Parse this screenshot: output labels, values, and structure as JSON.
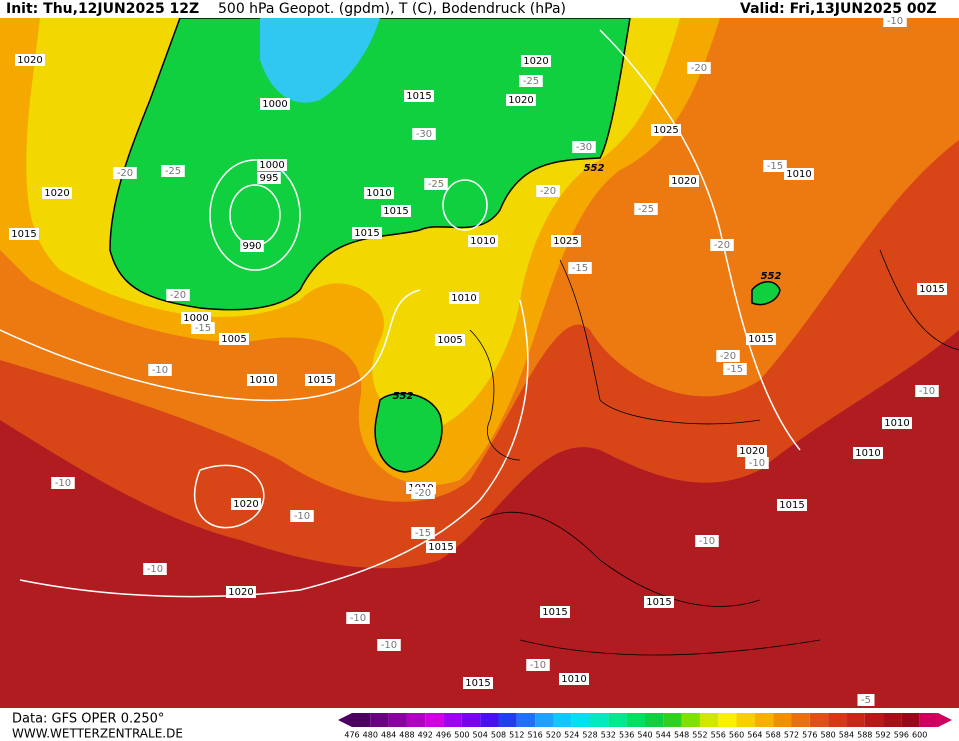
{
  "header": {
    "init": "Init: Thu,12JUN2025 12Z",
    "title": "500 hPa Geopot. (gpdm), T (C), Bodendruck (hPa)",
    "valid": "Valid: Fri,13JUN2025 00Z"
  },
  "footer": {
    "data": "Data: GFS OPER 0.250°",
    "site": "WWW.WETTERZENTRALE.DE"
  },
  "scale": {
    "values": [
      476,
      480,
      484,
      488,
      492,
      496,
      500,
      504,
      508,
      512,
      516,
      520,
      524,
      528,
      532,
      536,
      540,
      544,
      548,
      552,
      556,
      560,
      564,
      568,
      572,
      576,
      580,
      584,
      588,
      592,
      596,
      600
    ],
    "colors": [
      "#4b0060",
      "#6a0080",
      "#8a00a0",
      "#b000c0",
      "#d000e0",
      "#a000f0",
      "#7a00f0",
      "#4a10f0",
      "#2040f0",
      "#2070f8",
      "#20a0ff",
      "#10c8ff",
      "#00e0f0",
      "#00e8c0",
      "#00e890",
      "#00e060",
      "#10d040",
      "#30d020",
      "#80e000",
      "#d0e800",
      "#f8f000",
      "#f8d000",
      "#f8b000",
      "#f09000",
      "#e87010",
      "#e05018",
      "#d83818",
      "#c82818",
      "#b81818",
      "#a81018",
      "#980818",
      "#d00060"
    ]
  },
  "labels": [
    "1020",
    "1000",
    "1000",
    "995",
    "990",
    "1020",
    "1015",
    "-20",
    "-25",
    "-20",
    "1000",
    "-15",
    "1005",
    "1010",
    "1015",
    "-10",
    "1010",
    "1015",
    "1015",
    "-30",
    "1015",
    "1020",
    "-25",
    "1020",
    "-30",
    "-25",
    "1010",
    "552",
    "-20",
    "1025",
    "-15",
    "1010",
    "1005",
    "552",
    "1010",
    "-20",
    "1020",
    "-10",
    "-10",
    "-15",
    "1015",
    "-10",
    "1020",
    "-10",
    "-10",
    "1015",
    "1015",
    "-10",
    "1010",
    "1015",
    "-10",
    "1015",
    "1020",
    "-10",
    "1010",
    "1010",
    "-10",
    "1015",
    "1015",
    "-20",
    "-15",
    "552",
    "-20",
    "1020",
    "-25",
    "1025",
    "-20",
    "-15",
    "1010",
    "-5",
    "-10"
  ]
}
